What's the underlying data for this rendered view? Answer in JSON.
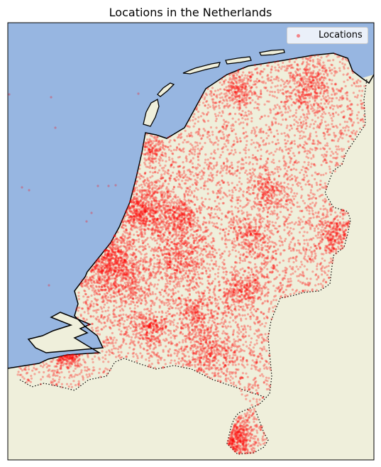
{
  "title": "Locations in the Netherlands",
  "legend": {
    "label": "Locations"
  },
  "colors": {
    "sea": "#97b6e1",
    "land": "#efefdb",
    "points": "#ff0000",
    "coastline": "#000000",
    "border": "#000000"
  },
  "chart_data": {
    "type": "scatter",
    "title": "Locations in the Netherlands",
    "series": [
      {
        "name": "Locations",
        "marker": "circle",
        "color": "#ff0000",
        "alpha": 0.3
      }
    ],
    "extent_lon": [
      3.2,
      7.3
    ],
    "extent_lat": [
      50.7,
      53.65
    ],
    "grid": false,
    "legend_position": "top-right",
    "density_centers": [
      {
        "lon": 4.89,
        "lat": 52.37,
        "weight": 1.3
      },
      {
        "lon": 4.48,
        "lat": 51.92,
        "weight": 1.2
      },
      {
        "lon": 4.3,
        "lat": 52.07,
        "weight": 1.0
      },
      {
        "lon": 5.12,
        "lat": 52.09,
        "weight": 0.9
      },
      {
        "lon": 5.47,
        "lat": 51.44,
        "weight": 0.9
      },
      {
        "lon": 6.57,
        "lat": 53.22,
        "weight": 0.8
      },
      {
        "lon": 5.85,
        "lat": 51.84,
        "weight": 0.7
      },
      {
        "lon": 5.7,
        "lat": 50.85,
        "weight": 0.9
      },
      {
        "lon": 4.78,
        "lat": 51.59,
        "weight": 0.6
      },
      {
        "lon": 5.3,
        "lat": 51.69,
        "weight": 0.6
      },
      {
        "lon": 6.89,
        "lat": 52.22,
        "weight": 0.6
      },
      {
        "lon": 6.1,
        "lat": 52.51,
        "weight": 0.5
      },
      {
        "lon": 5.8,
        "lat": 53.2,
        "weight": 0.5
      },
      {
        "lon": 4.64,
        "lat": 52.39,
        "weight": 0.6
      },
      {
        "lon": 5.96,
        "lat": 52.21,
        "weight": 0.5
      },
      {
        "lon": 5.17,
        "lat": 52.34,
        "weight": 0.4
      },
      {
        "lon": 4.8,
        "lat": 52.8,
        "weight": 0.3
      },
      {
        "lon": 3.85,
        "lat": 51.45,
        "weight": 0.4
      }
    ]
  }
}
